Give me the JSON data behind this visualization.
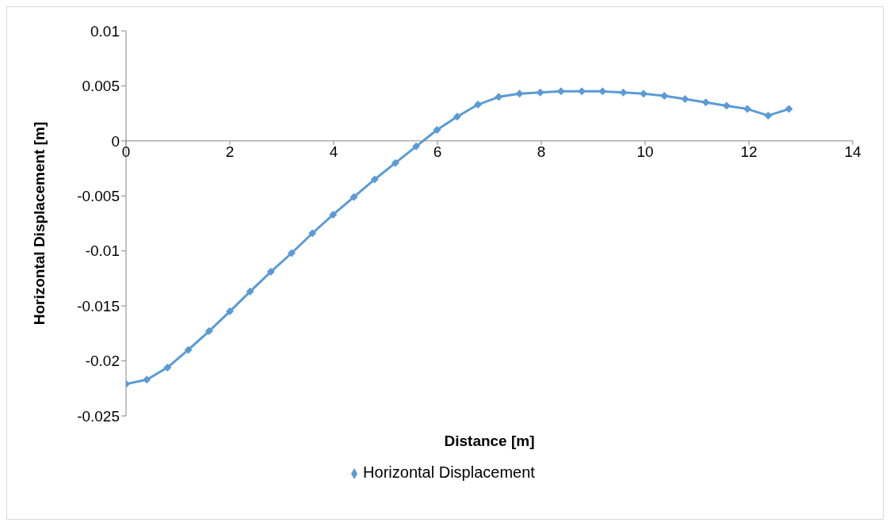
{
  "chart_data": {
    "type": "line",
    "xlabel": "Distance [m]",
    "ylabel": "Horizontal Displacement [m]",
    "x": [
      0,
      0.4,
      0.8,
      1.2,
      1.6,
      2.0,
      2.39,
      2.79,
      3.19,
      3.59,
      3.99,
      4.39,
      4.79,
      5.19,
      5.59,
      5.99,
      6.38,
      6.78,
      7.18,
      7.58,
      7.98,
      8.38,
      8.78,
      9.18,
      9.58,
      9.97,
      10.37,
      10.77,
      11.17,
      11.57,
      11.97,
      12.37,
      12.77
    ],
    "series": [
      {
        "name": "Horizontal Displacement",
        "color": "#5b9bd5",
        "values": [
          -0.0221,
          -0.0217,
          -0.0206,
          -0.019,
          -0.0173,
          -0.0155,
          -0.0137,
          -0.0119,
          -0.0102,
          -0.0084,
          -0.0067,
          -0.0051,
          -0.0035,
          -0.002,
          -0.0005,
          0.001,
          0.0022,
          0.0033,
          0.004,
          0.0043,
          0.0044,
          0.0045,
          0.0045,
          0.0045,
          0.0044,
          0.0043,
          0.0041,
          0.0038,
          0.0035,
          0.0032,
          0.0029,
          0.0023,
          0.0029
        ]
      }
    ],
    "xlim": [
      0,
      14
    ],
    "xticks": [
      0,
      2,
      4,
      6,
      8,
      10,
      12,
      14
    ],
    "ylim": [
      -0.025,
      0.01
    ],
    "yticks": [
      -0.025,
      -0.02,
      -0.015,
      -0.01,
      -0.005,
      0,
      0.005,
      0.01
    ],
    "grid": false,
    "legend": "bottom",
    "marker": "diamond",
    "line_style": "solid"
  }
}
